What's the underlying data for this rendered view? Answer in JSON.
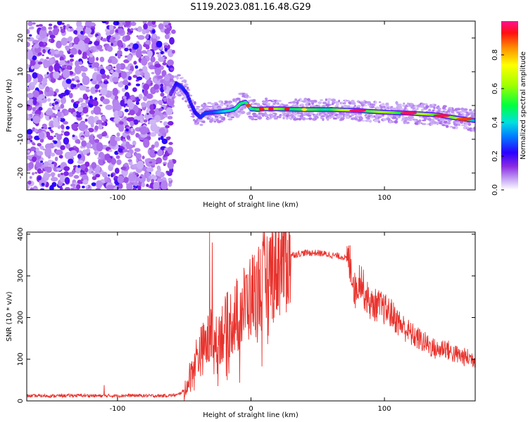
{
  "figure": {
    "title": "S119.2023.081.16.48.G29"
  },
  "chart_data": [
    {
      "type": "heatmap",
      "xlabel": "Height of straight line (km)",
      "ylabel": "Frequency (Hz)",
      "xlim": [
        -168,
        168
      ],
      "ylim": [
        -25,
        25
      ],
      "xticks": [
        -100,
        0,
        100
      ],
      "yticks": [
        -20,
        -10,
        0,
        10,
        20
      ],
      "colorbar": {
        "label": "Normalized spectral amplitude",
        "range": [
          0,
          1
        ],
        "ticks": [
          0.0,
          0.2,
          0.4,
          0.6,
          0.8
        ]
      },
      "noise_region": {
        "x": [
          -168,
          -60
        ],
        "description_level": "low amplitude speckle"
      },
      "ridge": {
        "x": [
          -60,
          -56,
          -52,
          -48,
          -45,
          -42,
          -38,
          -34,
          -28,
          -22,
          -16,
          -12,
          -8,
          -4,
          0,
          5,
          10,
          20,
          40,
          60,
          80,
          100,
          120,
          140,
          155,
          168
        ],
        "freq": [
          3.5,
          6.5,
          5.5,
          3.5,
          0.5,
          -2.0,
          -3.5,
          -2.2,
          -2.0,
          -1.8,
          -1.5,
          -1.0,
          0.5,
          1.0,
          -1.0,
          -1.2,
          -1.0,
          -1.0,
          -1.2,
          -1.2,
          -1.5,
          -2.0,
          -2.3,
          -2.8,
          -3.8,
          -4.5
        ],
        "amplitude": [
          0.25,
          0.4,
          0.4,
          0.3,
          0.3,
          0.3,
          0.35,
          0.4,
          0.5,
          0.55,
          0.6,
          0.6,
          0.7,
          0.75,
          0.8,
          0.85,
          0.9,
          0.9,
          0.75,
          0.85,
          0.95,
          0.85,
          0.9,
          0.9,
          0.85,
          0.6
        ]
      }
    },
    {
      "type": "line",
      "xlabel": "Height of straight line (km)",
      "ylabel": "SNR (10 * v/v)",
      "xlim": [
        -168,
        168
      ],
      "ylim": [
        0,
        405
      ],
      "xticks": [
        -100,
        0,
        100
      ],
      "yticks": [
        0,
        100,
        200,
        300,
        400
      ],
      "color": "#e8322c",
      "series": [
        {
          "x": [
            -168,
            -150,
            -130,
            -110,
            -90,
            -70,
            -55,
            -48,
            -45,
            -40,
            -35,
            -30,
            -25,
            -20,
            -15,
            -10,
            -5,
            0,
            5,
            10,
            15,
            20,
            25,
            30,
            40,
            50,
            60,
            70,
            75,
            78,
            82,
            85,
            90,
            95,
            100,
            105,
            110,
            115,
            120,
            125,
            130,
            135,
            140,
            145,
            150,
            155,
            160,
            168
          ],
          "y": [
            12,
            12,
            13,
            12,
            13,
            12,
            14,
            30,
            70,
            110,
            130,
            150,
            160,
            170,
            190,
            210,
            230,
            250,
            270,
            290,
            310,
            330,
            345,
            350,
            355,
            355,
            350,
            345,
            325,
            260,
            300,
            260,
            230,
            230,
            220,
            210,
            190,
            175,
            160,
            150,
            140,
            130,
            120,
            130,
            115,
            110,
            105,
            100
          ]
        }
      ],
      "spikes": [
        {
          "x": -31,
          "y": 405
        },
        {
          "x": -29,
          "y": 380
        },
        {
          "x": -110,
          "y": 38
        }
      ]
    }
  ]
}
